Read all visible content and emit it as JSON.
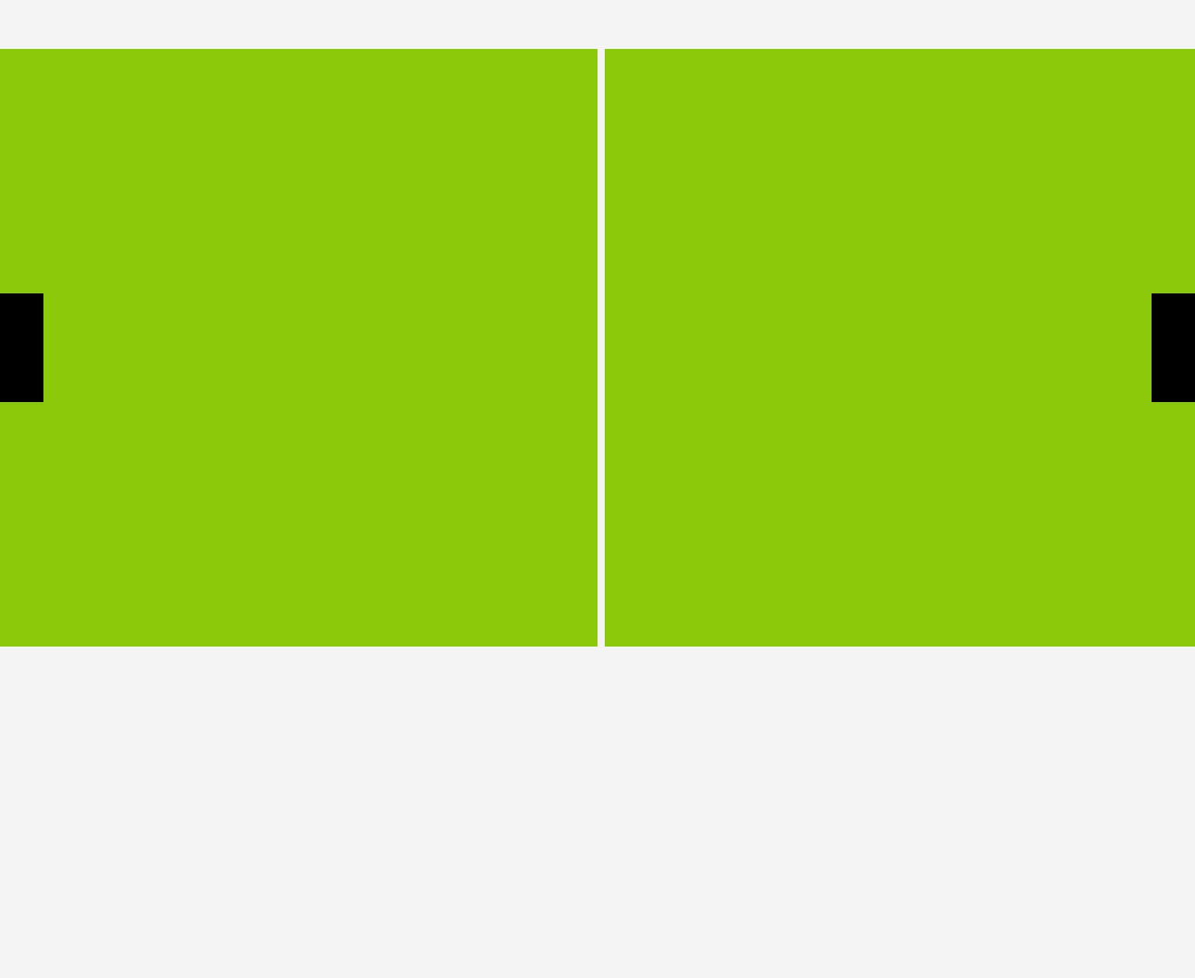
{
  "colors": {
    "page_background": "#f4f4f4",
    "slide_background": "#8cc90a",
    "nav_button": "#000000"
  },
  "carousel": {
    "slide_count_visible": 2,
    "prev_button": {
      "icon": "prev-arrow-icon"
    },
    "next_button": {
      "icon": "next-arrow-icon"
    }
  }
}
